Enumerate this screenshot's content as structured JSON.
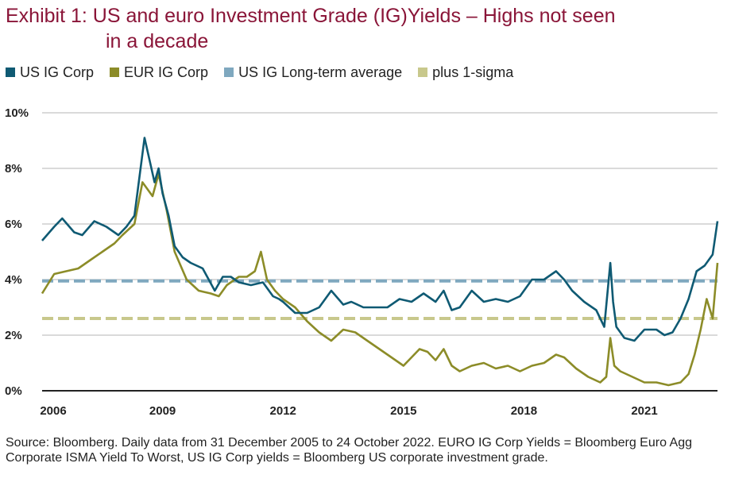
{
  "title": {
    "line1": "Exhibit 1: US and euro Investment Grade (IG)Yields – Highs not seen",
    "line2": "in a decade"
  },
  "source": "Source: Bloomberg. Daily data from 31 December 2005 to 24 October 2022. EURO IG Corp Yields = Bloomberg Euro Agg Corporate ISMA Yield To Worst, US IG Corp yields = Bloomberg US corporate investment grade.",
  "colors": {
    "us": "#0f5a73",
    "eur": "#8c8c28",
    "us_avg": "#7fa8bf",
    "sigma": "#c8c88c",
    "title": "#8a1538",
    "grid": "#b4b4b4"
  },
  "chart_data": {
    "type": "line",
    "title": "Exhibit 1: US and euro Investment Grade (IG)Yields – Highs not seen in a decade",
    "xlabel": "",
    "ylabel": "",
    "xlim": [
      2006.0,
      2022.82
    ],
    "ylim": [
      0,
      10
    ],
    "x_ticks": [
      2006,
      2009,
      2012,
      2015,
      2018,
      2021
    ],
    "x_tick_labels": [
      "2006",
      "2009",
      "2012",
      "2015",
      "2018",
      "2021"
    ],
    "y_ticks": [
      0,
      2,
      4,
      6,
      8,
      10
    ],
    "y_tick_labels": [
      "0%",
      "2%",
      "4%",
      "6%",
      "8%",
      "10%"
    ],
    "grid": true,
    "legend_position": "top-left",
    "series": [
      {
        "name": "US IG Corp",
        "x": [
          2006.0,
          2006.3,
          2006.5,
          2006.8,
          2007.0,
          2007.3,
          2007.6,
          2007.9,
          2008.1,
          2008.3,
          2008.55,
          2008.8,
          2008.9,
          2009.0,
          2009.15,
          2009.3,
          2009.5,
          2009.7,
          2010.0,
          2010.3,
          2010.5,
          2010.7,
          2010.9,
          2011.2,
          2011.5,
          2011.75,
          2011.9,
          2012.0,
          2012.3,
          2012.6,
          2012.9,
          2013.2,
          2013.5,
          2013.7,
          2014.0,
          2014.3,
          2014.6,
          2014.9,
          2015.2,
          2015.5,
          2015.8,
          2016.0,
          2016.2,
          2016.4,
          2016.7,
          2017.0,
          2017.3,
          2017.6,
          2017.9,
          2018.2,
          2018.5,
          2018.8,
          2019.0,
          2019.2,
          2019.5,
          2019.8,
          2020.0,
          2020.15,
          2020.22,
          2020.3,
          2020.5,
          2020.75,
          2021.0,
          2021.3,
          2021.5,
          2021.7,
          2021.9,
          2022.1,
          2022.3,
          2022.5,
          2022.7,
          2022.82
        ],
        "values": [
          5.4,
          5.9,
          6.2,
          5.7,
          5.6,
          6.1,
          5.9,
          5.6,
          5.9,
          6.3,
          9.1,
          7.5,
          8.0,
          7.1,
          6.3,
          5.2,
          4.8,
          4.6,
          4.4,
          3.6,
          4.1,
          4.1,
          3.9,
          3.8,
          3.9,
          3.4,
          3.3,
          3.2,
          2.8,
          2.8,
          3.0,
          3.6,
          3.1,
          3.2,
          3.0,
          3.0,
          3.0,
          3.3,
          3.2,
          3.5,
          3.2,
          3.6,
          2.9,
          3.0,
          3.6,
          3.2,
          3.3,
          3.2,
          3.4,
          4.0,
          4.0,
          4.3,
          4.0,
          3.6,
          3.2,
          2.9,
          2.3,
          4.6,
          3.2,
          2.3,
          1.9,
          1.8,
          2.2,
          2.2,
          2.0,
          2.1,
          2.6,
          3.3,
          4.3,
          4.5,
          4.9,
          6.1
        ]
      },
      {
        "name": "EUR IG Corp",
        "x": [
          2006.0,
          2006.3,
          2006.6,
          2006.9,
          2007.2,
          2007.5,
          2007.8,
          2008.0,
          2008.3,
          2008.5,
          2008.75,
          2008.9,
          2009.1,
          2009.3,
          2009.6,
          2009.9,
          2010.2,
          2010.4,
          2010.6,
          2010.9,
          2011.1,
          2011.3,
          2011.45,
          2011.6,
          2011.8,
          2012.0,
          2012.3,
          2012.6,
          2012.9,
          2013.2,
          2013.5,
          2013.8,
          2014.1,
          2014.4,
          2014.7,
          2015.0,
          2015.2,
          2015.4,
          2015.6,
          2015.8,
          2016.0,
          2016.2,
          2016.4,
          2016.7,
          2017.0,
          2017.3,
          2017.6,
          2017.9,
          2018.2,
          2018.5,
          2018.8,
          2019.0,
          2019.3,
          2019.6,
          2019.9,
          2020.05,
          2020.15,
          2020.25,
          2020.4,
          2020.7,
          2021.0,
          2021.3,
          2021.6,
          2021.9,
          2022.1,
          2022.25,
          2022.4,
          2022.55,
          2022.7,
          2022.82
        ],
        "values": [
          3.5,
          4.2,
          4.3,
          4.4,
          4.7,
          5.0,
          5.3,
          5.6,
          6.0,
          7.5,
          7.0,
          7.8,
          6.5,
          5.0,
          4.0,
          3.6,
          3.5,
          3.4,
          3.8,
          4.1,
          4.1,
          4.3,
          5.0,
          4.0,
          3.6,
          3.3,
          3.0,
          2.5,
          2.1,
          1.8,
          2.2,
          2.1,
          1.8,
          1.5,
          1.2,
          0.9,
          1.2,
          1.5,
          1.4,
          1.1,
          1.5,
          0.9,
          0.7,
          0.9,
          1.0,
          0.8,
          0.9,
          0.7,
          0.9,
          1.0,
          1.3,
          1.2,
          0.8,
          0.5,
          0.3,
          0.5,
          1.9,
          0.9,
          0.7,
          0.5,
          0.3,
          0.3,
          0.2,
          0.3,
          0.6,
          1.3,
          2.2,
          3.3,
          2.6,
          4.6
        ]
      },
      {
        "name": "US IG Long-term average",
        "x": [
          2006.0,
          2022.82
        ],
        "values": [
          3.95,
          3.95
        ]
      },
      {
        "name": "plus 1-sigma",
        "x": [
          2006.0,
          2022.82
        ],
        "values": [
          2.6,
          2.6
        ]
      }
    ]
  }
}
